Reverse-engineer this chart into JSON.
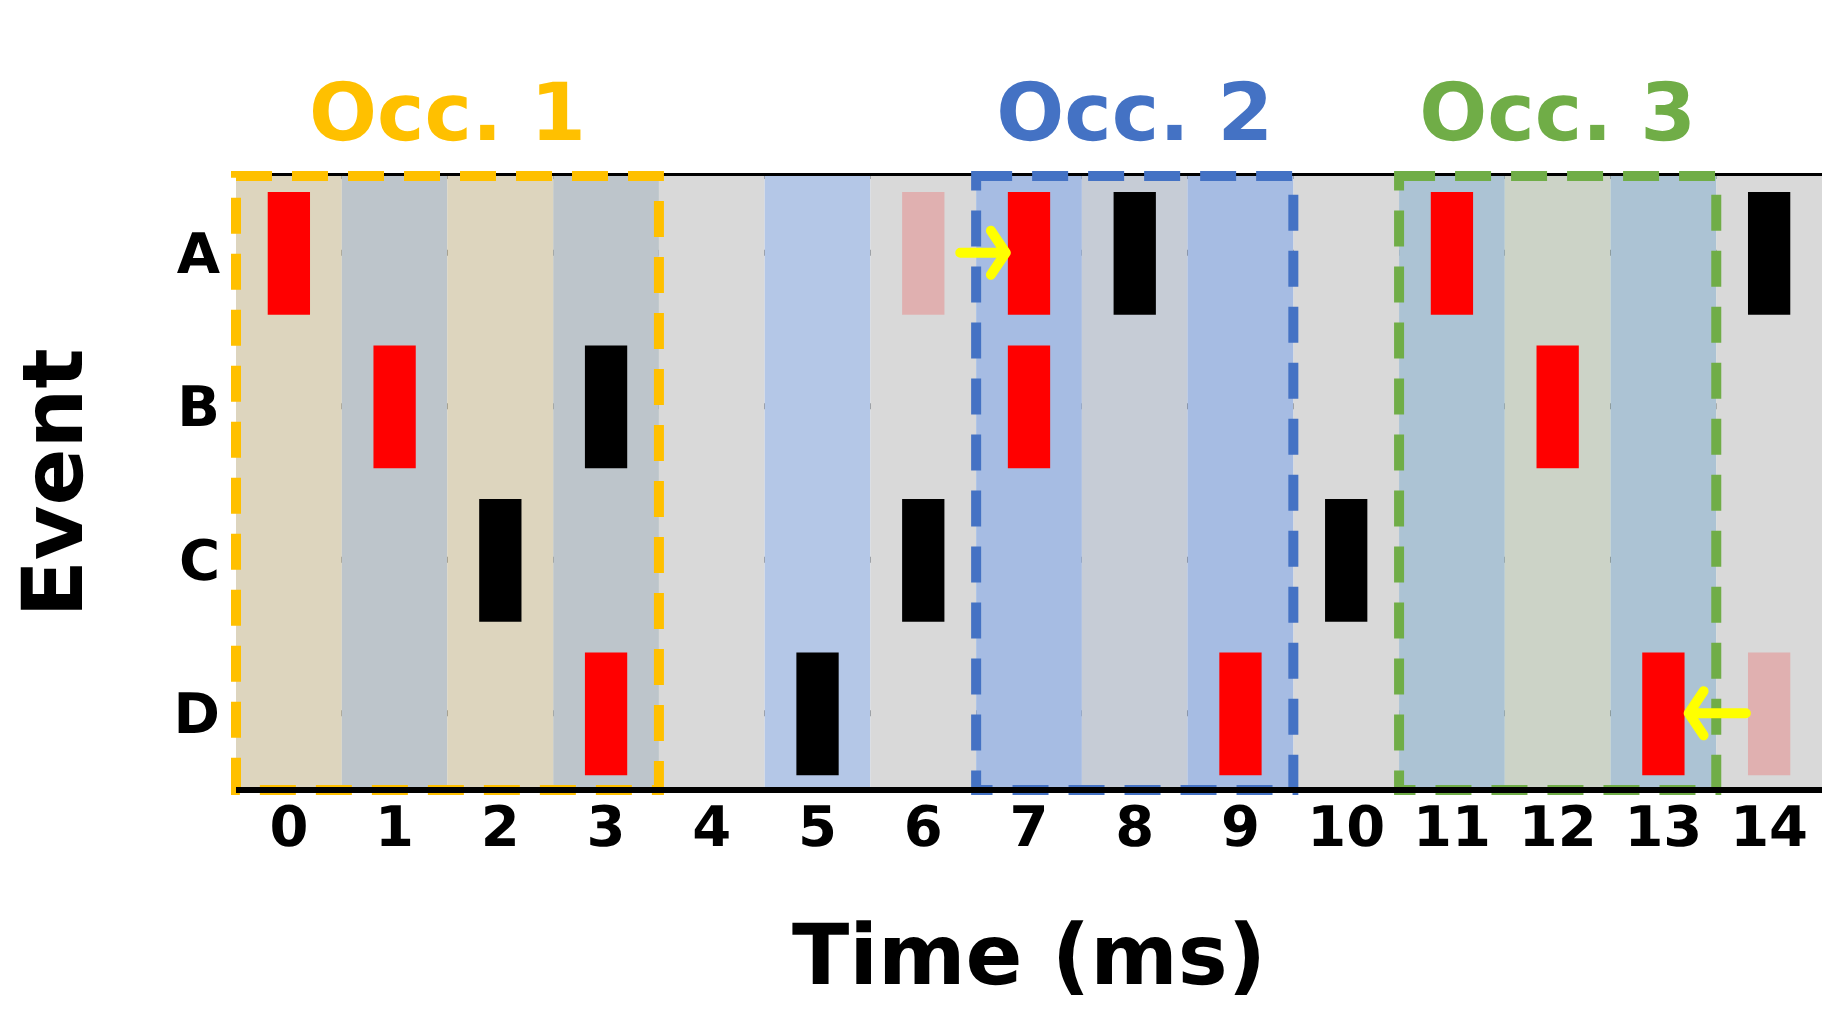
{
  "chart_data": {
    "type": "bar",
    "orientation": "horizontal",
    "xlabel": "Time (ms)",
    "ylabel": "Event",
    "categories": [
      "A",
      "B",
      "C",
      "D"
    ],
    "xlim": [
      -0.5,
      14.5
    ],
    "xticks": [
      0,
      1,
      2,
      3,
      4,
      5,
      6,
      7,
      8,
      9,
      10,
      11,
      12,
      13,
      14
    ],
    "grid": "y",
    "series": [
      {
        "color": "#ff0000",
        "base": [
          -0.2,
          0.8,
          null,
          2.8
        ],
        "values": [
          0.4,
          0.4,
          null,
          0.4
        ]
      },
      {
        "color": "#ff0000",
        "base": [
          6.8,
          6.8,
          null,
          8.8
        ],
        "values": [
          0.4,
          0.4,
          null,
          0.4
        ]
      },
      {
        "color": "#ff0000",
        "base": [
          10.8,
          11.8,
          null,
          12.8
        ],
        "values": [
          0.4,
          0.4,
          null,
          0.4
        ]
      },
      {
        "color": "#000000",
        "base": [
          7.8,
          2.8,
          1.8,
          4.8
        ],
        "values": [
          0.4,
          0.4,
          0.4,
          0.4
        ]
      },
      {
        "color": "#000000",
        "base": [
          13.8,
          null,
          5.8,
          null
        ],
        "values": [
          0.4,
          null,
          0.4,
          null
        ]
      },
      {
        "color": "#000000",
        "base": [
          null,
          null,
          9.8,
          null
        ],
        "values": [
          null,
          null,
          0.4,
          null
        ]
      },
      {
        "color": "#e0b0b0",
        "base": [
          5.8,
          null,
          null,
          13.8
        ],
        "values": [
          0.4,
          null,
          null,
          0.4
        ]
      }
    ],
    "bands": [
      {
        "axis": "x",
        "from": -0.5,
        "to": 0.5,
        "color": "#d9d9d9"
      },
      {
        "axis": "x",
        "from": 0.5,
        "to": 1.5,
        "color": "#b4c7e7"
      },
      {
        "axis": "x",
        "from": 1.5,
        "to": 2.5,
        "color": "#d9d9d9"
      },
      {
        "axis": "x",
        "from": 2.5,
        "to": 3.5,
        "color": "#b4c7e7"
      },
      {
        "axis": "x",
        "from": 3.5,
        "to": 4.5,
        "color": "#d9d9d9"
      },
      {
        "axis": "x",
        "from": 4.5,
        "to": 5.5,
        "color": "#b4c7e7"
      },
      {
        "axis": "x",
        "from": 5.5,
        "to": 6.5,
        "color": "#d9d9d9"
      },
      {
        "axis": "x",
        "from": 6.5,
        "to": 7.5,
        "color": "#b4c7e7"
      },
      {
        "axis": "x",
        "from": 7.5,
        "to": 8.5,
        "color": "#d9d9d9"
      },
      {
        "axis": "x",
        "from": 8.5,
        "to": 9.5,
        "color": "#b4c7e7"
      },
      {
        "axis": "x",
        "from": 9.5,
        "to": 10.5,
        "color": "#d9d9d9"
      },
      {
        "axis": "x",
        "from": 10.5,
        "to": 11.5,
        "color": "#b4c7e7"
      },
      {
        "axis": "x",
        "from": 11.5,
        "to": 12.5,
        "color": "#d9d9d9"
      },
      {
        "axis": "x",
        "from": 12.5,
        "to": 13.5,
        "color": "#b4c7e7"
      },
      {
        "axis": "x",
        "from": 13.5,
        "to": 14.5,
        "color": "#d9d9d9"
      },
      {
        "axis": "x",
        "from": -0.5,
        "to": 3.5,
        "label": "Occ. 1",
        "color": "#ffc000"
      },
      {
        "axis": "x",
        "from": 6.5,
        "to": 9.5,
        "label": "Occ. 2",
        "color": "#4472c4"
      },
      {
        "axis": "x",
        "from": 10.5,
        "to": 13.5,
        "label": "Occ. 3",
        "color": "#70ad47"
      }
    ]
  }
}
